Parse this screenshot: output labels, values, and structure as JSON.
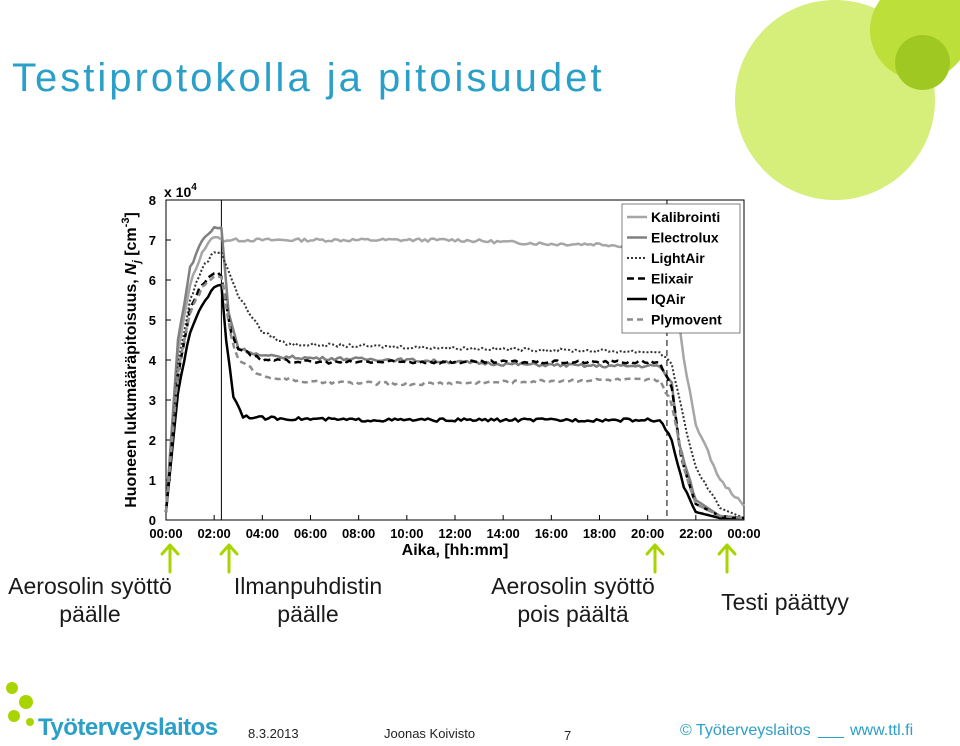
{
  "slide": {
    "title": "Testiprotokolla ja pitoisuudet",
    "accent_color": "#2a9fc8",
    "green_color": "#a8d500"
  },
  "chart_data": {
    "type": "line",
    "xlabel": "Aika, [hh:mm]",
    "ylabel_main": "Huoneen lukumääräpitoisuus, ",
    "ylabel_symbol": "N",
    "ylabel_sub": "j",
    "ylabel_unit": " [cm",
    "ylabel_exp": "-3",
    "ylabel_close": "]",
    "multiplier_text": "x 10",
    "multiplier_exp": "4",
    "xlim": [
      0,
      24
    ],
    "ylim": [
      0,
      8
    ],
    "x_ticks": [
      "00:00",
      "02:00",
      "04:00",
      "06:00",
      "08:00",
      "10:00",
      "12:00",
      "14:00",
      "16:00",
      "18:00",
      "20:00",
      "22:00",
      "00:00"
    ],
    "y_ticks": [
      "0",
      "1",
      "2",
      "3",
      "4",
      "5",
      "6",
      "7",
      "8"
    ],
    "vlines_hours": [
      2.3,
      20.8
    ],
    "legend_position": "top-right",
    "series": [
      {
        "name": "Kalibrointi",
        "color": "#a6a6a6",
        "dash": "",
        "width": 2.5,
        "points": [
          [
            0,
            0.2
          ],
          [
            0.5,
            4.2
          ],
          [
            1,
            5.9
          ],
          [
            1.5,
            6.7
          ],
          [
            2,
            7.1
          ],
          [
            2.3,
            7.0
          ],
          [
            4,
            7.0
          ],
          [
            8,
            7.0
          ],
          [
            12,
            7.0
          ],
          [
            16,
            6.9
          ],
          [
            18,
            6.9
          ],
          [
            20,
            6.8
          ],
          [
            21,
            6.5
          ],
          [
            21.5,
            4.0
          ],
          [
            22,
            2.4
          ],
          [
            23,
            1.0
          ],
          [
            24,
            0.35
          ]
        ]
      },
      {
        "name": "Electrolux",
        "color": "#808080",
        "dash": "",
        "width": 2.5,
        "points": [
          [
            0,
            0.2
          ],
          [
            0.5,
            4.5
          ],
          [
            1,
            6.3
          ],
          [
            1.5,
            7.0
          ],
          [
            2,
            7.3
          ],
          [
            2.3,
            7.3
          ],
          [
            2.6,
            5.2
          ],
          [
            3,
            4.3
          ],
          [
            4,
            4.1
          ],
          [
            6,
            4.05
          ],
          [
            10,
            4.0
          ],
          [
            14,
            3.9
          ],
          [
            18,
            3.85
          ],
          [
            20.5,
            3.85
          ],
          [
            21,
            3.4
          ],
          [
            21.3,
            1.9
          ],
          [
            22,
            0.5
          ],
          [
            23,
            0.1
          ],
          [
            24,
            0.05
          ]
        ]
      },
      {
        "name": "LightAir",
        "color": "#333333",
        "dash": "2,2",
        "width": 2,
        "points": [
          [
            0,
            0.2
          ],
          [
            0.5,
            3.9
          ],
          [
            1,
            5.5
          ],
          [
            1.5,
            6.3
          ],
          [
            2,
            6.7
          ],
          [
            2.3,
            6.7
          ],
          [
            3,
            5.6
          ],
          [
            4,
            4.7
          ],
          [
            5,
            4.4
          ],
          [
            8,
            4.35
          ],
          [
            12,
            4.3
          ],
          [
            16,
            4.25
          ],
          [
            20.5,
            4.2
          ],
          [
            21,
            3.9
          ],
          [
            21.5,
            2.5
          ],
          [
            22,
            1.3
          ],
          [
            23,
            0.3
          ],
          [
            24,
            0.05
          ]
        ]
      },
      {
        "name": "Elixair",
        "color": "#000000",
        "dash": "7,4",
        "width": 2.5,
        "points": [
          [
            0,
            0.2
          ],
          [
            0.5,
            3.6
          ],
          [
            1,
            5.3
          ],
          [
            1.5,
            5.9
          ],
          [
            2,
            6.2
          ],
          [
            2.3,
            6.1
          ],
          [
            2.7,
            4.7
          ],
          [
            3,
            4.3
          ],
          [
            4,
            4.0
          ],
          [
            6,
            3.95
          ],
          [
            10,
            3.95
          ],
          [
            14,
            3.95
          ],
          [
            18,
            3.95
          ],
          [
            20.5,
            3.95
          ],
          [
            21,
            3.3
          ],
          [
            21.4,
            1.5
          ],
          [
            22,
            0.4
          ],
          [
            23,
            0.1
          ],
          [
            24,
            0.05
          ]
        ]
      },
      {
        "name": "IQAir",
        "color": "#000000",
        "dash": "",
        "width": 2.5,
        "points": [
          [
            0,
            0.2
          ],
          [
            0.5,
            3.2
          ],
          [
            1,
            4.7
          ],
          [
            1.5,
            5.4
          ],
          [
            2,
            5.8
          ],
          [
            2.3,
            5.9
          ],
          [
            2.5,
            4.5
          ],
          [
            2.8,
            3.1
          ],
          [
            3.2,
            2.6
          ],
          [
            4,
            2.55
          ],
          [
            8,
            2.5
          ],
          [
            12,
            2.5
          ],
          [
            16,
            2.5
          ],
          [
            20.5,
            2.5
          ],
          [
            21,
            2.0
          ],
          [
            21.5,
            0.8
          ],
          [
            22,
            0.2
          ],
          [
            23,
            0.05
          ],
          [
            24,
            0.05
          ]
        ]
      },
      {
        "name": "Plymovent",
        "color": "#8c8c8c",
        "dash": "6,4",
        "width": 2.5,
        "points": [
          [
            0,
            0.2
          ],
          [
            0.5,
            3.7
          ],
          [
            1,
            5.2
          ],
          [
            1.5,
            5.8
          ],
          [
            2,
            6.1
          ],
          [
            2.3,
            6.1
          ],
          [
            2.7,
            4.6
          ],
          [
            3,
            4.0
          ],
          [
            4,
            3.6
          ],
          [
            6,
            3.45
          ],
          [
            10,
            3.4
          ],
          [
            14,
            3.45
          ],
          [
            18,
            3.5
          ],
          [
            20.5,
            3.5
          ],
          [
            21,
            2.9
          ],
          [
            21.5,
            1.3
          ],
          [
            22,
            0.4
          ],
          [
            23,
            0.1
          ],
          [
            24,
            0.05
          ]
        ]
      }
    ]
  },
  "annotations": [
    {
      "line1": "Aerosolin syöttö",
      "line2": "päälle"
    },
    {
      "line1": "Ilmanpuhdistin",
      "line2": "päälle"
    },
    {
      "line1": "Aerosolin syöttö",
      "line2": "pois päältä"
    },
    {
      "line1": "Testi päättyy",
      "line2": ""
    }
  ],
  "footer": {
    "logo_text": "Työterveyslaitos",
    "date": "8.3.2013",
    "author": "Joonas Koivisto",
    "page": "7",
    "copyright": "© Työterveyslaitos",
    "url": "www.ttl.fi"
  }
}
